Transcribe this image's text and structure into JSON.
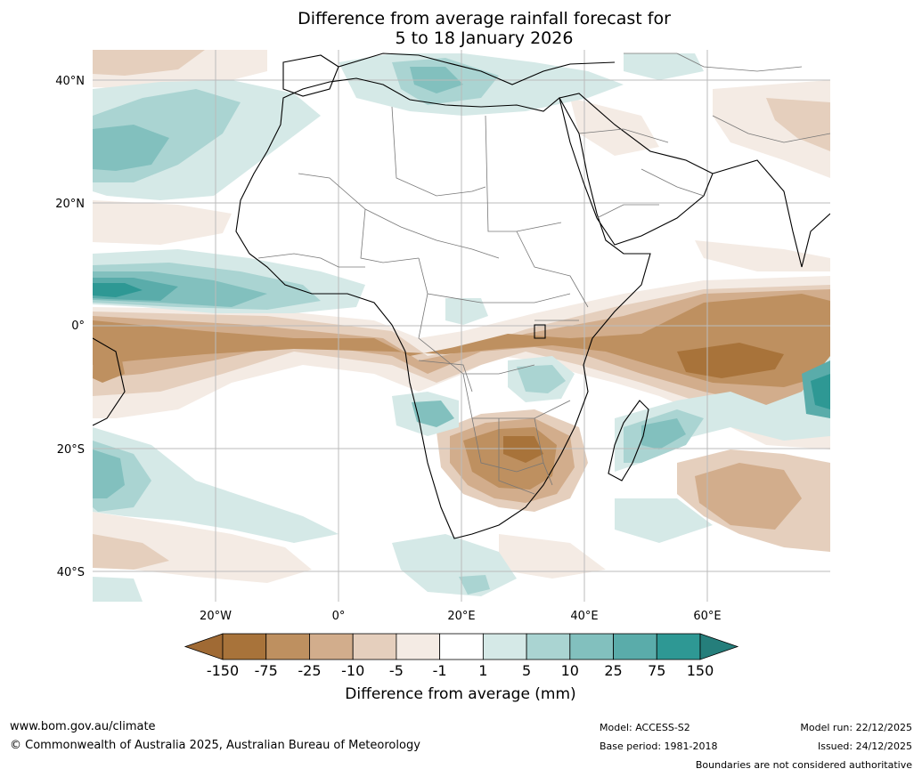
{
  "title": {
    "line1": "Difference from average rainfall forecast for",
    "line2": "5 to 18 January 2026"
  },
  "map": {
    "lat_labels": [
      "40°N",
      "20°N",
      "0°",
      "20°S",
      "40°S"
    ],
    "lat_values": [
      40,
      20,
      0,
      -20,
      -40
    ],
    "lon_labels": [
      "20°W",
      "0°",
      "20°E",
      "40°E",
      "60°E"
    ],
    "lon_values": [
      -20,
      0,
      20,
      40,
      60
    ],
    "extent": {
      "lon_min": -40,
      "lon_max": 80,
      "lat_min": -45,
      "lat_max": 45
    }
  },
  "colorbar": {
    "title": "Difference from average (mm)",
    "ticks": [
      "-150",
      "-75",
      "-25",
      "-10",
      "-5",
      "-1",
      "1",
      "5",
      "10",
      "25",
      "75",
      "150"
    ],
    "colors": [
      "#a06a34",
      "#a8733a",
      "#be9060",
      "#d2ad8c",
      "#e5cfbd",
      "#f4ebe4",
      "#ffffff",
      "#d5e9e7",
      "#aad4d2",
      "#82c0be",
      "#5aacaa",
      "#2e9894",
      "#257e7b"
    ]
  },
  "footer": {
    "website": "www.bom.gov.au/climate",
    "copyright": "© Commonwealth of Australia 2025, Australian Bureau of Meteorology",
    "model": "Model: ACCESS-S2",
    "base_period": "Base period: 1981-2018",
    "model_run": "Model run: 22/12/2025",
    "issued": "Issued: 24/12/2025",
    "disclaimer": "Boundaries are not considered authoritative"
  }
}
